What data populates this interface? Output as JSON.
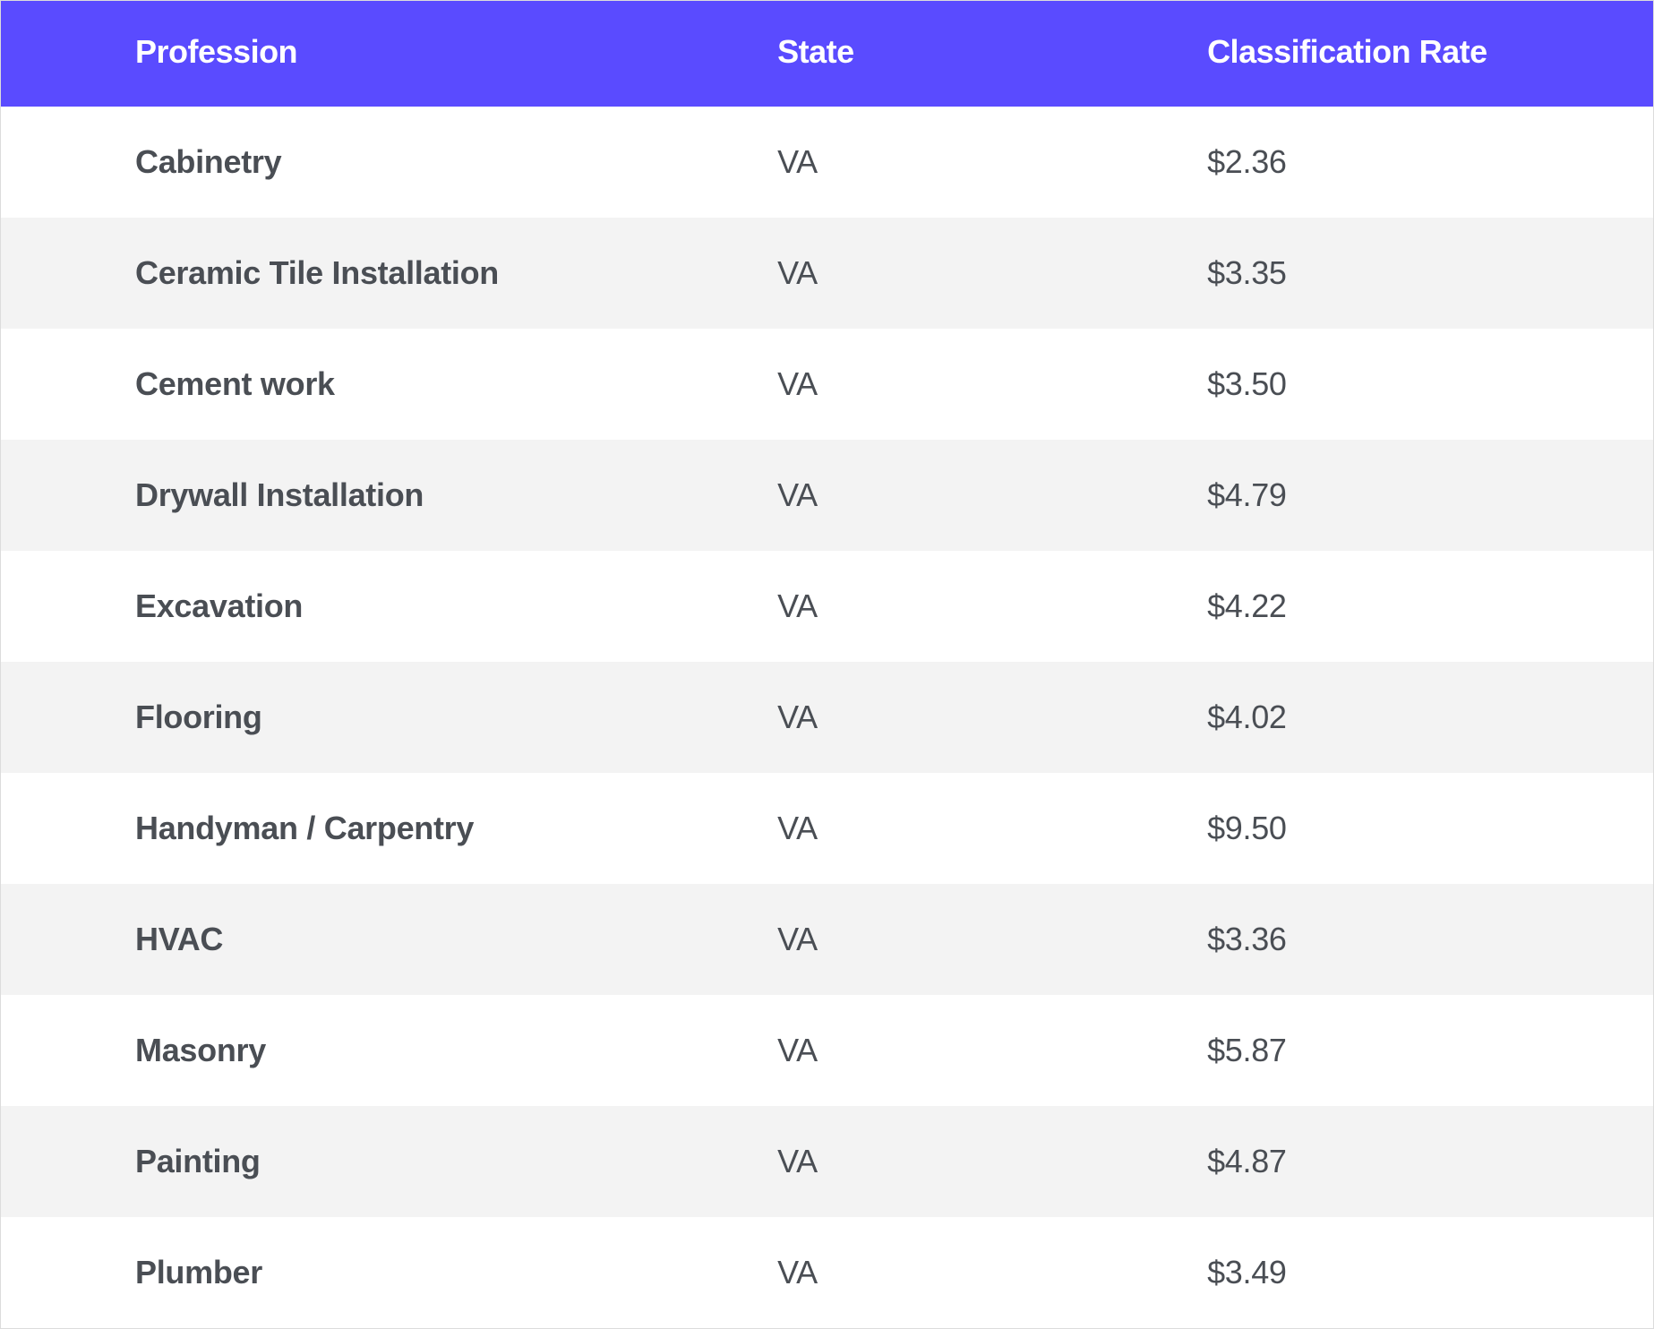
{
  "table": {
    "header_bg": "#5a4bff",
    "header_text_color": "#ffffff",
    "row_odd_bg": "#ffffff",
    "row_even_bg": "#f3f3f3",
    "body_text_color": "#4a4e54",
    "border_color": "#dcdcdc",
    "columns": [
      {
        "key": "profession",
        "label": "Profession"
      },
      {
        "key": "state",
        "label": "State"
      },
      {
        "key": "rate",
        "label": "Classification Rate"
      }
    ],
    "rows": [
      {
        "profession": "Cabinetry",
        "state": "VA",
        "rate": "$2.36"
      },
      {
        "profession": "Ceramic Tile Installation",
        "state": "VA",
        "rate": "$3.35"
      },
      {
        "profession": "Cement work",
        "state": "VA",
        "rate": "$3.50"
      },
      {
        "profession": "Drywall Installation",
        "state": "VA",
        "rate": "$4.79"
      },
      {
        "profession": "Excavation",
        "state": "VA",
        "rate": "$4.22"
      },
      {
        "profession": "Flooring",
        "state": "VA",
        "rate": "$4.02"
      },
      {
        "profession": "Handyman / Carpentry",
        "state": "VA",
        "rate": "$9.50"
      },
      {
        "profession": "HVAC",
        "state": "VA",
        "rate": "$3.36"
      },
      {
        "profession": "Masonry",
        "state": "VA",
        "rate": "$5.87"
      },
      {
        "profession": "Painting",
        "state": "VA",
        "rate": "$4.87"
      },
      {
        "profession": "Plumber",
        "state": "VA",
        "rate": "$3.49"
      }
    ]
  }
}
